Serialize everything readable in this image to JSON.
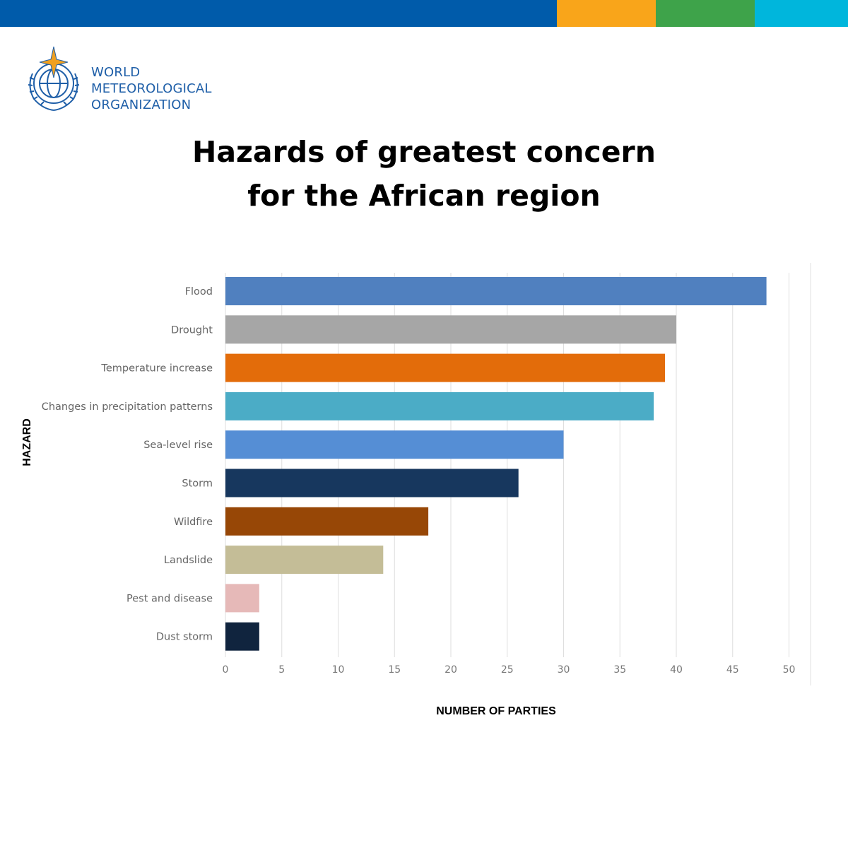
{
  "brand": {
    "stripe_colors": [
      "#005baa",
      "#f9a51a",
      "#3ea34a",
      "#00b6dc"
    ],
    "org_lines": [
      "WORLD",
      "METEOROLOGICAL",
      "ORGANIZATION"
    ],
    "logo_color": "#1f5fa8",
    "star_color": "#f0a020"
  },
  "chart_data": {
    "type": "bar",
    "orientation": "horizontal",
    "title": "Hazards of greatest concern for the African region",
    "title_lines": [
      "Hazards of greatest concern",
      "for the African region"
    ],
    "xlabel": "NUMBER OF PARTIES",
    "ylabel": "HAZARD",
    "xlim": [
      0,
      50
    ],
    "xticks": [
      0,
      5,
      10,
      15,
      20,
      25,
      30,
      35,
      40,
      45,
      50
    ],
    "grid": "vertical",
    "categories": [
      "Flood",
      "Drought",
      "Temperature increase",
      "Changes in precipitation patterns",
      "Sea-level rise",
      "Storm",
      "Wildfire",
      "Landslide",
      "Pest and disease",
      "Dust storm"
    ],
    "values": [
      48,
      40,
      39,
      38,
      30,
      26,
      18,
      14,
      3,
      3
    ],
    "colors": [
      "#5080bf",
      "#a6a6a6",
      "#e36c0a",
      "#4bacc6",
      "#558ed5",
      "#17375e",
      "#974706",
      "#c4bd97",
      "#e6b9b8",
      "#10243e"
    ]
  }
}
